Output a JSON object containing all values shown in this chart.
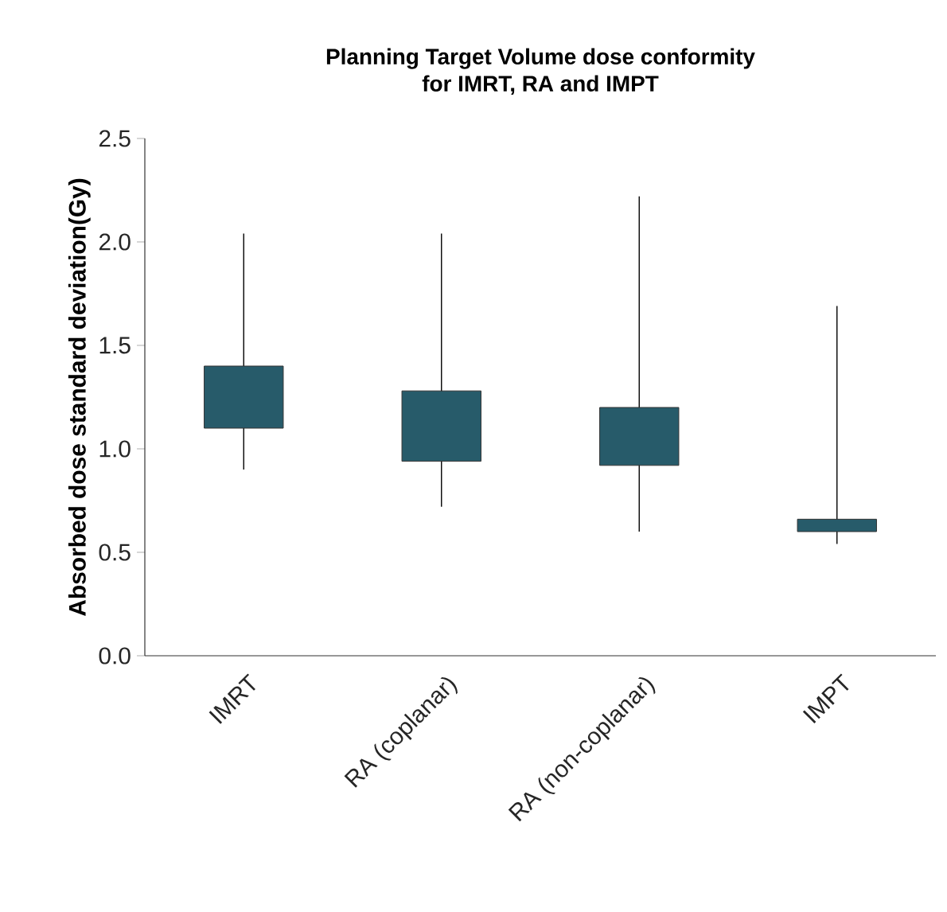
{
  "chart_data": {
    "type": "box",
    "title": "Planning Target Volume dose conformity\nfor IMRT, RA and IMPT",
    "ylabel": "Absorbed dose standard deviation(Gy)",
    "categories": [
      "IMRT",
      "RA (coplanar)",
      "RA (non-coplanar)",
      "IMPT"
    ],
    "color": "#275b6a",
    "boxes": [
      {
        "low": 0.9,
        "q1": 1.1,
        "q3": 1.4,
        "high": 2.04
      },
      {
        "low": 0.72,
        "q1": 0.94,
        "q3": 1.28,
        "high": 2.04
      },
      {
        "low": 0.6,
        "q1": 0.92,
        "q3": 1.2,
        "high": 2.22
      },
      {
        "low": 0.54,
        "q1": 0.6,
        "q3": 0.66,
        "high": 1.69
      }
    ],
    "ylim": [
      0,
      2.5
    ],
    "yticks": [
      {
        "value": 0,
        "label": "0.0"
      },
      {
        "value": 0.5,
        "label": "0.5"
      },
      {
        "value": 1,
        "label": "1.0"
      },
      {
        "value": 1.5,
        "label": "1.5"
      },
      {
        "value": 2,
        "label": "2.0"
      },
      {
        "value": 2.5,
        "label": "2.5"
      }
    ],
    "tick_labels": "xy"
  }
}
